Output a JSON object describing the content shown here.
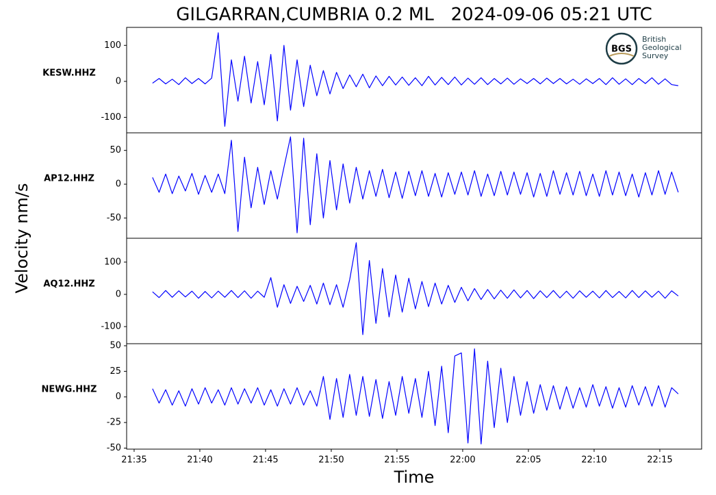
{
  "chart_data": [
    {
      "type": "line",
      "title": "GILGARRAN,CUMBRIA 0.2 ML   2024-09-06 05:21 UTC",
      "fig_ylabel": "Velocity nm/s",
      "ylabel": "KESW.HHZ",
      "logo": {
        "abbr": "BGS",
        "lines": [
          "British",
          "Geological",
          "Survey"
        ]
      },
      "xlim": [
        1294.43,
        1338.18
      ],
      "ylim": [
        -143,
        150
      ],
      "yticks": [
        -100,
        0,
        100
      ],
      "x": [
        1296.4,
        1296.9,
        1297.4,
        1297.9,
        1298.4,
        1298.9,
        1299.4,
        1299.9,
        1300.4,
        1300.9,
        1301.4,
        1301.9,
        1302.4,
        1302.9,
        1303.4,
        1303.9,
        1304.4,
        1304.9,
        1305.4,
        1305.9,
        1306.4,
        1306.9,
        1307.4,
        1307.9,
        1308.4,
        1308.9,
        1309.4,
        1309.9,
        1310.4,
        1310.9,
        1311.4,
        1311.9,
        1312.4,
        1312.9,
        1313.4,
        1313.9,
        1314.4,
        1314.9,
        1315.4,
        1315.9,
        1316.4,
        1316.9,
        1317.4,
        1317.9,
        1318.4,
        1318.9,
        1319.4,
        1319.9,
        1320.4,
        1320.9,
        1321.4,
        1321.9,
        1322.4,
        1322.9,
        1323.4,
        1323.9,
        1324.4,
        1324.9,
        1325.4,
        1325.9,
        1326.4,
        1326.9,
        1327.4,
        1327.9,
        1328.4,
        1328.9,
        1329.4,
        1329.9,
        1330.4,
        1330.9,
        1331.4,
        1331.9,
        1332.4,
        1332.9,
        1333.4,
        1333.9,
        1334.4,
        1334.9,
        1335.4,
        1335.9,
        1336.4
      ],
      "series": [
        {
          "color": "#0000ff",
          "values": [
            -5,
            8,
            -7,
            6,
            -9,
            10,
            -6,
            8,
            -7,
            9,
            135,
            -125,
            60,
            -55,
            70,
            -60,
            55,
            -65,
            75,
            -110,
            100,
            -80,
            60,
            -70,
            45,
            -40,
            30,
            -35,
            25,
            -20,
            18,
            -15,
            20,
            -18,
            15,
            -12,
            14,
            -10,
            12,
            -11,
            10,
            -12,
            14,
            -10,
            11,
            -9,
            12,
            -10,
            9,
            -8,
            10,
            -9,
            8,
            -7,
            9,
            -8,
            7,
            -6,
            8,
            -7,
            9,
            -6,
            8,
            -7,
            6,
            -8,
            7,
            -6,
            8,
            -9,
            10,
            -8,
            7,
            -9,
            8,
            -6,
            10,
            -8,
            7,
            -9,
            -12
          ]
        }
      ]
    },
    {
      "type": "line",
      "ylabel": "AP12.HHZ",
      "xlim": [
        1294.43,
        1338.18
      ],
      "ylim": [
        -80,
        76
      ],
      "yticks": [
        -50,
        0,
        50
      ],
      "x": [
        1296.4,
        1296.9,
        1297.4,
        1297.9,
        1298.4,
        1298.9,
        1299.4,
        1299.9,
        1300.4,
        1300.9,
        1301.4,
        1301.9,
        1302.4,
        1302.9,
        1303.4,
        1303.9,
        1304.4,
        1304.9,
        1305.4,
        1305.9,
        1306.4,
        1306.9,
        1307.4,
        1307.9,
        1308.4,
        1308.9,
        1309.4,
        1309.9,
        1310.4,
        1310.9,
        1311.4,
        1311.9,
        1312.4,
        1312.9,
        1313.4,
        1313.9,
        1314.4,
        1314.9,
        1315.4,
        1315.9,
        1316.4,
        1316.9,
        1317.4,
        1317.9,
        1318.4,
        1318.9,
        1319.4,
        1319.9,
        1320.4,
        1320.9,
        1321.4,
        1321.9,
        1322.4,
        1322.9,
        1323.4,
        1323.9,
        1324.4,
        1324.9,
        1325.4,
        1325.9,
        1326.4,
        1326.9,
        1327.4,
        1327.9,
        1328.4,
        1328.9,
        1329.4,
        1329.9,
        1330.4,
        1330.9,
        1331.4,
        1331.9,
        1332.4,
        1332.9,
        1333.4,
        1333.9,
        1334.4,
        1334.9,
        1335.4,
        1335.9,
        1336.4
      ],
      "series": [
        {
          "color": "#0000ff",
          "values": [
            10,
            -12,
            15,
            -14,
            12,
            -10,
            16,
            -15,
            13,
            -12,
            15,
            -14,
            65,
            -70,
            40,
            -35,
            25,
            -30,
            20,
            -22,
            25,
            70,
            -72,
            68,
            -60,
            45,
            -50,
            35,
            -38,
            30,
            -28,
            25,
            -22,
            20,
            -18,
            22,
            -20,
            18,
            -21,
            19,
            -17,
            20,
            -18,
            16,
            -19,
            17,
            -15,
            18,
            -16,
            20,
            -18,
            15,
            -17,
            19,
            -16,
            18,
            -15,
            17,
            -19,
            16,
            -18,
            20,
            -15,
            17,
            -16,
            19,
            -17,
            15,
            -18,
            20,
            -16,
            18,
            -17,
            15,
            -19,
            17,
            -16,
            20,
            -15,
            18,
            -12
          ]
        }
      ]
    },
    {
      "type": "line",
      "ylabel": "AQ12.HHZ",
      "xlim": [
        1294.43,
        1338.18
      ],
      "ylim": [
        -153,
        174
      ],
      "yticks": [
        -100,
        0,
        100
      ],
      "x": [
        1296.4,
        1296.9,
        1297.4,
        1297.9,
        1298.4,
        1298.9,
        1299.4,
        1299.9,
        1300.4,
        1300.9,
        1301.4,
        1301.9,
        1302.4,
        1302.9,
        1303.4,
        1303.9,
        1304.4,
        1304.9,
        1305.4,
        1305.9,
        1306.4,
        1306.9,
        1307.4,
        1307.9,
        1308.4,
        1308.9,
        1309.4,
        1309.9,
        1310.4,
        1310.9,
        1311.4,
        1311.9,
        1312.4,
        1312.9,
        1313.4,
        1313.9,
        1314.4,
        1314.9,
        1315.4,
        1315.9,
        1316.4,
        1316.9,
        1317.4,
        1317.9,
        1318.4,
        1318.9,
        1319.4,
        1319.9,
        1320.4,
        1320.9,
        1321.4,
        1321.9,
        1322.4,
        1322.9,
        1323.4,
        1323.9,
        1324.4,
        1324.9,
        1325.4,
        1325.9,
        1326.4,
        1326.9,
        1327.4,
        1327.9,
        1328.4,
        1328.9,
        1329.4,
        1329.9,
        1330.4,
        1330.9,
        1331.4,
        1331.9,
        1332.4,
        1332.9,
        1333.4,
        1333.9,
        1334.4,
        1334.9,
        1335.4,
        1335.9,
        1336.4
      ],
      "series": [
        {
          "color": "#0000ff",
          "values": [
            8,
            -10,
            12,
            -9,
            11,
            -8,
            10,
            -12,
            9,
            -11,
            10,
            -9,
            12,
            -10,
            11,
            -12,
            10,
            -9,
            52,
            -40,
            30,
            -28,
            25,
            -22,
            28,
            -30,
            35,
            -32,
            30,
            -40,
            45,
            160,
            -125,
            105,
            -90,
            80,
            -70,
            60,
            -55,
            50,
            -45,
            40,
            -38,
            35,
            -30,
            28,
            -25,
            22,
            -20,
            18,
            -16,
            15,
            -14,
            13,
            -12,
            14,
            -11,
            12,
            -13,
            11,
            -10,
            12,
            -11,
            10,
            -12,
            11,
            -9,
            10,
            -11,
            12,
            -10,
            9,
            -11,
            12,
            -10,
            11,
            -9,
            10,
            -12,
            11,
            -5
          ]
        }
      ]
    },
    {
      "type": "line",
      "ylabel": "NEWG.HHZ",
      "x_label": "Time",
      "xlim": [
        1294.43,
        1338.18
      ],
      "ylim": [
        -51,
        52
      ],
      "yticks": [
        -50,
        -25,
        0,
        25,
        50
      ],
      "xticks": [
        {
          "value": 1295,
          "label": "21:35"
        },
        {
          "value": 1300,
          "label": "21:40"
        },
        {
          "value": 1305,
          "label": "21:45"
        },
        {
          "value": 1310,
          "label": "21:50"
        },
        {
          "value": 1315,
          "label": "21:55"
        },
        {
          "value": 1320,
          "label": "22:00"
        },
        {
          "value": 1325,
          "label": "22:05"
        },
        {
          "value": 1330,
          "label": "22:10"
        },
        {
          "value": 1335,
          "label": "22:15"
        }
      ],
      "x": [
        1296.4,
        1296.9,
        1297.4,
        1297.9,
        1298.4,
        1298.9,
        1299.4,
        1299.9,
        1300.4,
        1300.9,
        1301.4,
        1301.9,
        1302.4,
        1302.9,
        1303.4,
        1303.9,
        1304.4,
        1304.9,
        1305.4,
        1305.9,
        1306.4,
        1306.9,
        1307.4,
        1307.9,
        1308.4,
        1308.9,
        1309.4,
        1309.9,
        1310.4,
        1310.9,
        1311.4,
        1311.9,
        1312.4,
        1312.9,
        1313.4,
        1313.9,
        1314.4,
        1314.9,
        1315.4,
        1315.9,
        1316.4,
        1316.9,
        1317.4,
        1317.9,
        1318.4,
        1318.9,
        1319.4,
        1319.9,
        1320.4,
        1320.9,
        1321.4,
        1321.9,
        1322.4,
        1322.9,
        1323.4,
        1323.9,
        1324.4,
        1324.9,
        1325.4,
        1325.9,
        1326.4,
        1326.9,
        1327.4,
        1327.9,
        1328.4,
        1328.9,
        1329.4,
        1329.9,
        1330.4,
        1330.9,
        1331.4,
        1331.9,
        1332.4,
        1332.9,
        1333.4,
        1333.9,
        1334.4,
        1334.9,
        1335.4,
        1335.9,
        1336.4
      ],
      "series": [
        {
          "color": "#0000ff",
          "values": [
            8,
            -6,
            7,
            -8,
            6,
            -9,
            8,
            -7,
            9,
            -6,
            7,
            -8,
            9,
            -7,
            8,
            -6,
            9,
            -8,
            7,
            -9,
            8,
            -7,
            9,
            -8,
            6,
            -9,
            20,
            -22,
            18,
            -20,
            22,
            -18,
            20,
            -19,
            17,
            -21,
            15,
            -18,
            20,
            -16,
            18,
            -20,
            25,
            -28,
            30,
            -35,
            40,
            43,
            -45,
            47,
            -46,
            35,
            -30,
            28,
            -25,
            20,
            -18,
            15,
            -16,
            12,
            -13,
            11,
            -12,
            10,
            -11,
            9,
            -10,
            12,
            -9,
            10,
            -11,
            9,
            -10,
            11,
            -8,
            10,
            -9,
            11,
            -10,
            9,
            3
          ]
        }
      ]
    }
  ]
}
